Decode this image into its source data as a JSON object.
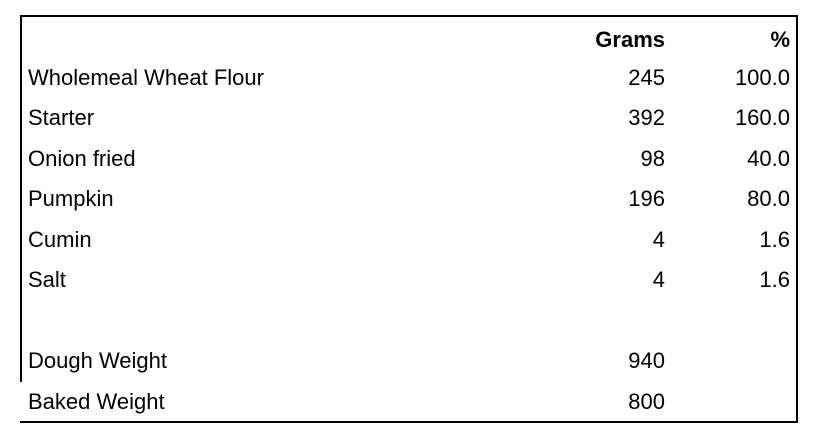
{
  "table": {
    "headers": {
      "name": "",
      "grams": "Grams",
      "percent": "%"
    },
    "rows": [
      {
        "name": "Wholemeal Wheat Flour",
        "grams": "245",
        "percent": "100.0"
      },
      {
        "name": "Starter",
        "grams": "392",
        "percent": "160.0"
      },
      {
        "name": "Onion fried",
        "grams": "98",
        "percent": "40.0"
      },
      {
        "name": "Pumpkin",
        "grams": "196",
        "percent": "80.0"
      },
      {
        "name": "Cumin",
        "grams": "4",
        "percent": "1.6"
      },
      {
        "name": "Salt",
        "grams": "4",
        "percent": "1.6"
      }
    ],
    "totals": [
      {
        "name": "Dough Weight",
        "grams": "940"
      },
      {
        "name": "Baked Weight",
        "grams": "800"
      }
    ]
  }
}
